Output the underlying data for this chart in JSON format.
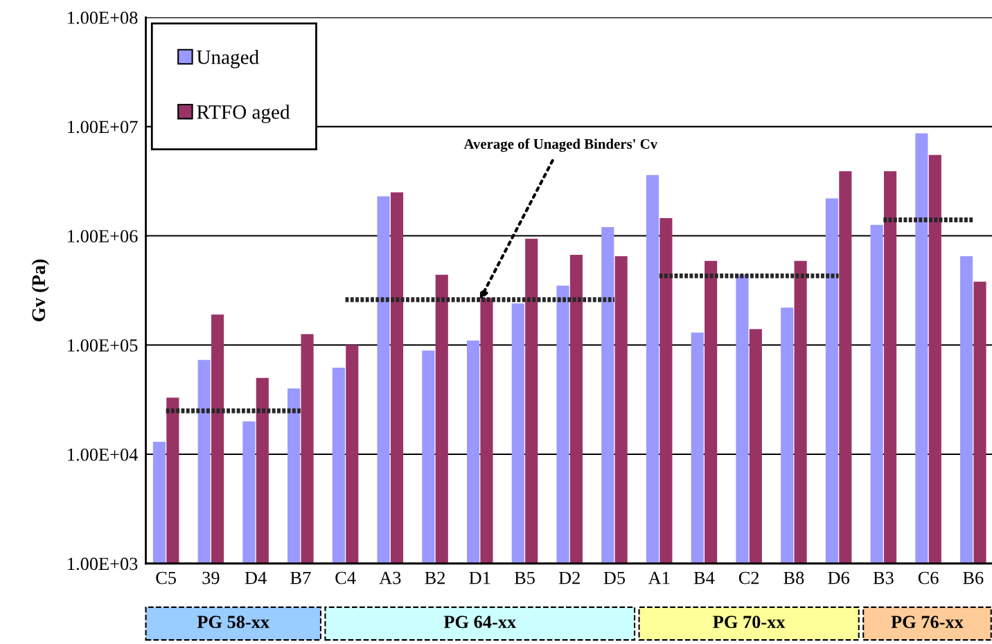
{
  "chart_data": {
    "type": "bar",
    "ylabel": "Gv (Pa)",
    "log": "y",
    "ylim": [
      1000,
      100000000
    ],
    "yticks": [
      {
        "value": 1000,
        "label": "1.00E+03"
      },
      {
        "value": 10000,
        "label": "1.00E+04"
      },
      {
        "value": 100000,
        "label": "1.00E+05"
      },
      {
        "value": 1000000,
        "label": "1.00E+06"
      },
      {
        "value": 10000000,
        "label": "1.00E+07"
      },
      {
        "value": 100000000,
        "label": "1.00E+08"
      }
    ],
    "grid": "y",
    "legend": "top left",
    "line_style": "dotted",
    "categories": [
      "C5",
      "39",
      "D4",
      "B7",
      "C4",
      "A3",
      "B2",
      "D1",
      "B5",
      "D2",
      "D5",
      "A1",
      "B4",
      "C2",
      "B8",
      "D6",
      "B3",
      "C6",
      "B6"
    ],
    "series": [
      {
        "name": "Unaged",
        "color": "#9999ff",
        "values": [
          13000,
          73000,
          20000,
          40000,
          62000,
          2300000,
          89000,
          110000,
          240000,
          350000,
          1200000,
          3600000,
          130000,
          440000,
          220000,
          2200000,
          1260000,
          8700000,
          650000
        ]
      },
      {
        "name": "RTFO aged",
        "color": "#993366",
        "values": [
          33000,
          190000,
          50000,
          126000,
          100000,
          2500000,
          440000,
          270000,
          940000,
          670000,
          650000,
          1450000,
          590000,
          140000,
          590000,
          3900000,
          3900000,
          5500000,
          380000
        ]
      },
      {
        "type": "line",
        "color": "#262626",
        "x": [
          "C5",
          "B7"
        ],
        "values": [
          25000,
          25000
        ]
      },
      {
        "type": "line",
        "color": "#262626",
        "x": [
          "C4",
          "D5"
        ],
        "values": [
          260000,
          260000
        ]
      },
      {
        "type": "line",
        "color": "#262626",
        "x": [
          "A1",
          "D6"
        ],
        "values": [
          430000,
          430000
        ]
      },
      {
        "type": "line",
        "color": "#262626",
        "x": [
          "B3",
          "B6"
        ],
        "values": [
          1400000,
          1400000
        ]
      }
    ],
    "annotations": [
      "PG 58-xx",
      "PG 64-xx",
      "PG 70-xx",
      "PG 76-xx",
      {
        "text": "Average of Unaged Binders' Cv",
        "x": "D1",
        "y": 260000
      }
    ]
  }
}
